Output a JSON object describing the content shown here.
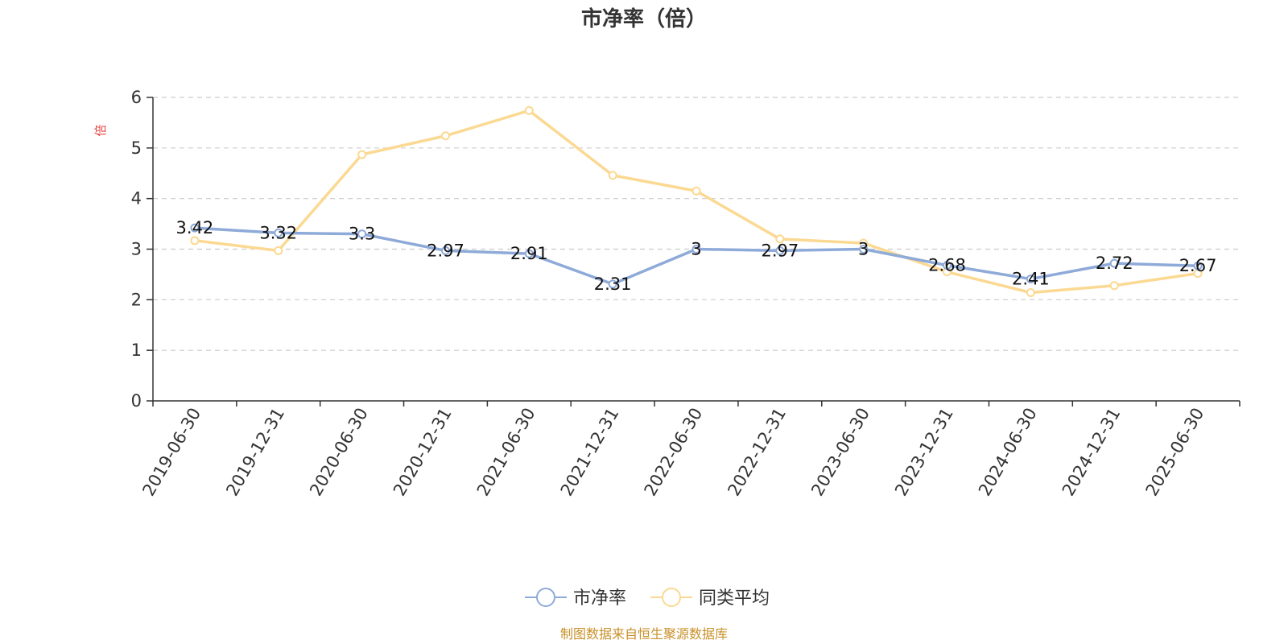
{
  "chart_data": {
    "type": "line",
    "title": "市净率（倍）",
    "ylabel": "倍",
    "ylim": [
      0,
      6
    ],
    "yticks": [
      "0",
      "1",
      "2",
      "3",
      "4",
      "5",
      "6"
    ],
    "grid": true,
    "legend_position": "bottom",
    "categories": [
      "2019-06-30",
      "2019-12-31",
      "2020-06-30",
      "2020-12-31",
      "2021-06-30",
      "2021-12-31",
      "2022-06-30",
      "2022-12-31",
      "2023-06-30",
      "2023-12-31",
      "2024-06-30",
      "2024-12-31",
      "2025-06-30"
    ],
    "series": [
      {
        "name": "市净率",
        "color": "#8eaad8",
        "values": [
          3.42,
          3.32,
          3.3,
          2.97,
          2.91,
          2.31,
          3,
          2.97,
          3,
          2.68,
          2.41,
          2.72,
          2.67
        ],
        "labels": [
          "3.42",
          "3.32",
          "3.3",
          "2.97",
          "2.91",
          "2.31",
          "3",
          "2.97",
          "3",
          "2.68",
          "2.41",
          "2.72",
          "2.67"
        ]
      },
      {
        "name": "同类平均",
        "color": "#fbd992",
        "values": [
          3.17,
          2.97,
          4.87,
          5.24,
          5.74,
          4.46,
          4.15,
          3.2,
          3.12,
          2.55,
          2.14,
          2.28,
          2.52
        ]
      }
    ],
    "source": "制图数据来自恒生聚源数据库",
    "colors": {
      "axis": "#333333",
      "grid": "#cccccc",
      "ylabel": "#e8423e",
      "source": "#c8902a"
    }
  }
}
